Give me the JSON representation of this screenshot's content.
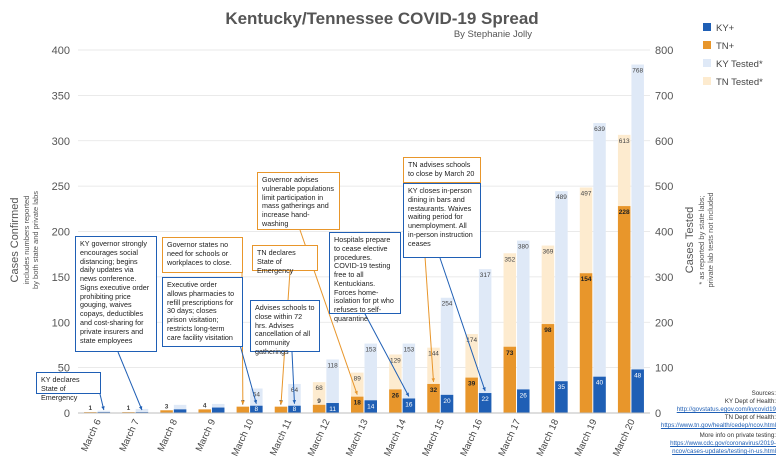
{
  "title": "Kentucky/Tennessee COVID-19 Spread",
  "subtitle": "By Stephanie Jolly",
  "y_axis_left": {
    "label": "Cases Confirmed",
    "sublabel_1": "includes numbers reported",
    "sublabel_2": "by both state and private labs"
  },
  "y_axis_right": {
    "label": "Cases Tested",
    "sublabel_1": "* as reported by state labs;",
    "sublabel_2": "private lab tests not included"
  },
  "colors": {
    "ky": "#1f5fb5",
    "tn": "#e8962b",
    "ky_tested": "#dfe9f7",
    "tn_tested": "#fdebcf"
  },
  "chart_data": {
    "type": "bar",
    "title": "Kentucky/Tennessee COVID-19 Spread",
    "categories": [
      "March 6",
      "March 7",
      "March 8",
      "March 9",
      "March 10",
      "March 11",
      "March 12",
      "March 13",
      "March 14",
      "March 15",
      "March 16",
      "March 17",
      "March 18",
      "March 19",
      "March 20"
    ],
    "series": [
      {
        "name": "KY+",
        "axis": "left",
        "values": [
          1,
          1,
          4,
          6,
          8,
          8,
          11,
          14,
          16,
          20,
          22,
          26,
          35,
          40,
          48
        ]
      },
      {
        "name": "TN+",
        "axis": "left",
        "values": [
          1,
          1,
          3,
          4,
          7,
          7,
          9,
          18,
          26,
          32,
          39,
          73,
          98,
          154,
          228
        ]
      },
      {
        "name": "KY Tested*",
        "axis": "right",
        "values": [
          5,
          9,
          18,
          20,
          54,
          64,
          118,
          153,
          153,
          254,
          317,
          380,
          489,
          639,
          768
        ]
      },
      {
        "name": "TN Tested*",
        "axis": "right",
        "values": [
          null,
          null,
          null,
          null,
          null,
          null,
          68,
          89,
          129,
          144,
          174,
          352,
          369,
          497,
          613
        ]
      }
    ],
    "data_labels": {
      "ky_cases": [
        "",
        "",
        "",
        "",
        "8",
        "8",
        "11",
        "14",
        "16",
        "20",
        "22",
        "26",
        "35",
        "40",
        "48"
      ],
      "tn_cases": [
        "1",
        "1",
        "3",
        "4",
        "7",
        "7",
        "9",
        "18",
        "26",
        "32",
        "39",
        "73",
        "98",
        "154",
        "228"
      ],
      "ky_tested": [
        "",
        "",
        "",
        "",
        "54",
        "64",
        "118",
        "153",
        "153",
        "254",
        "317",
        "380",
        "489",
        "639",
        "768"
      ],
      "tn_tested": [
        "",
        "",
        "",
        "",
        "",
        "",
        "68",
        "89",
        "129",
        "144",
        "174",
        "352",
        "369",
        "497",
        "613"
      ]
    },
    "ylim_left": [
      0,
      400
    ],
    "ylim_right": [
      0,
      800
    ],
    "yticks_left": [
      "0",
      "50",
      "100",
      "150",
      "200",
      "250",
      "300",
      "350",
      "400"
    ],
    "yticks_right": [
      "0",
      "100",
      "200",
      "300",
      "400",
      "500",
      "600",
      "700",
      "800"
    ],
    "grid": true,
    "legend_placement": "top-right"
  },
  "annotations": [
    {
      "id": "ky-emergency",
      "style": "blue",
      "text": "KY declares State of Emergency"
    },
    {
      "id": "ky-governor",
      "style": "blue",
      "text": "KY governor strongly encourages social distancing; begins daily updates via news conference. Signs executive order prohibiting price gouging, waives copays, deductibles and cost-sharing for private insurers and state employees"
    },
    {
      "id": "tn-no-need",
      "style": "orange",
      "text": "Governor states no need for schools or workplaces to close."
    },
    {
      "id": "exec-order",
      "style": "blue",
      "text": "Executive order allows pharmacies to refill prescriptions for 30 days; closes prison visitation; restricts long-term care facility visitation"
    },
    {
      "id": "tn-emergency",
      "style": "orange",
      "text": "TN declares State of Emergency"
    },
    {
      "id": "advises-schools",
      "style": "blue",
      "text": "Advises schools to close within 72 hrs. Advises cancellation of all community gatherings"
    },
    {
      "id": "gov-vulnerable",
      "style": "orange",
      "text": "Governor advises vulnerable populations limit participation in mass gatherings and increase hand-washing"
    },
    {
      "id": "hospitals",
      "style": "blue",
      "text": "Hospitals prepare to cease elective procedures. COVID-19 testing free to all Kentuckians. Forces home-isolation for pt who refuses to self-quarantine"
    },
    {
      "id": "tn-schools",
      "style": "orange",
      "text": "TN advises schools to close by March 20"
    },
    {
      "id": "ky-closes",
      "style": "blue",
      "text": "KY closes in-person dining in bars and restaurants. Waives waiting period for unemployment. All in-person instruction ceases"
    }
  ],
  "sources": {
    "heading": "Sources:",
    "ky_label": "KY Dept of Health:",
    "ky_url": "http://govstatus.egov.com/kycovid19",
    "tn_label": "TN Dept of Health:",
    "tn_url": "https://www.tn.gov/health/cedep/ncov.html",
    "more_label": "More info on private testing:",
    "more_url": "https://www.cdc.gov/coronavirus/2019-ncov/cases-updates/testing-in-us.html"
  }
}
